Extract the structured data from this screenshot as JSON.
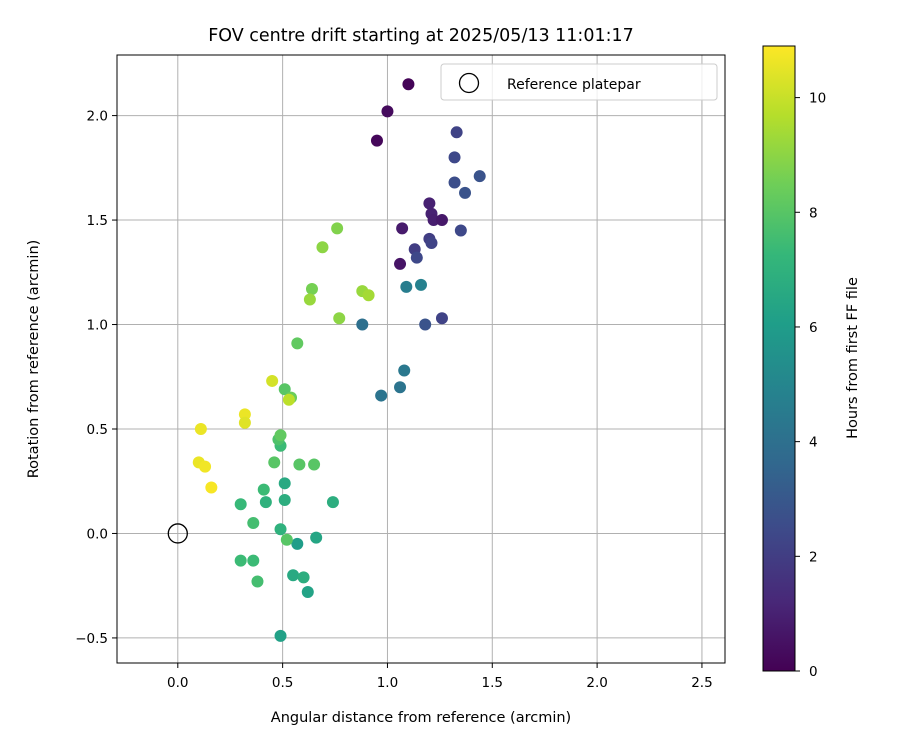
{
  "chart_data": {
    "type": "scatter",
    "title": "FOV centre drift starting at 2025/05/13 11:01:17",
    "xlabel": "Angular distance from reference (arcmin)",
    "ylabel": "Rotation from reference (arcmin)",
    "xlim": [
      -0.29,
      2.61
    ],
    "ylim": [
      -0.62,
      2.29
    ],
    "xticks": [
      0.0,
      0.5,
      1.0,
      1.5,
      2.0,
      2.5
    ],
    "xtick_labels": [
      "0.0",
      "0.5",
      "1.0",
      "1.5",
      "2.0",
      "2.5"
    ],
    "yticks": [
      -0.5,
      0.0,
      0.5,
      1.0,
      1.5,
      2.0
    ],
    "ytick_labels": [
      "−0.5",
      "0.0",
      "0.5",
      "1.0",
      "1.5",
      "2.0"
    ],
    "grid": true,
    "legend": {
      "placement": "top-right",
      "entries": [
        "Reference platepar"
      ]
    },
    "reference_point": {
      "name": "Reference platepar",
      "x": 0.0,
      "y": 0.0,
      "marker": "open-circle"
    },
    "colorbar": {
      "label": "Hours from first FF file",
      "colormap": "viridis",
      "range": [
        0,
        10.9
      ],
      "ticks": [
        0,
        2,
        4,
        6,
        8,
        10
      ],
      "tick_labels": [
        "0",
        "2",
        "4",
        "6",
        "8",
        "10"
      ],
      "colors": [
        "#440154",
        "#482878",
        "#3e4989",
        "#31688e",
        "#26828e",
        "#1f9e89",
        "#35b779",
        "#6ece58",
        "#b5de2b",
        "#fde725"
      ]
    },
    "series": [
      {
        "marker": "filled-circle",
        "points": [
          {
            "x": 1.1,
            "y": 2.15,
            "c": 0.1
          },
          {
            "x": 1.0,
            "y": 2.02,
            "c": 0.3
          },
          {
            "x": 0.95,
            "y": 1.88,
            "c": 0.2
          },
          {
            "x": 1.07,
            "y": 1.46,
            "c": 0.8
          },
          {
            "x": 1.06,
            "y": 1.29,
            "c": 0.6
          },
          {
            "x": 1.2,
            "y": 1.58,
            "c": 1.0
          },
          {
            "x": 1.21,
            "y": 1.53,
            "c": 1.0
          },
          {
            "x": 1.22,
            "y": 1.5,
            "c": 0.9
          },
          {
            "x": 1.26,
            "y": 1.5,
            "c": 0.7
          },
          {
            "x": 1.33,
            "y": 1.92,
            "c": 2.2
          },
          {
            "x": 1.32,
            "y": 1.8,
            "c": 2.4
          },
          {
            "x": 1.32,
            "y": 1.68,
            "c": 2.6
          },
          {
            "x": 1.37,
            "y": 1.63,
            "c": 2.8
          },
          {
            "x": 1.44,
            "y": 1.71,
            "c": 2.8
          },
          {
            "x": 1.35,
            "y": 1.45,
            "c": 2.4
          },
          {
            "x": 1.13,
            "y": 1.36,
            "c": 2.0
          },
          {
            "x": 1.2,
            "y": 1.41,
            "c": 2.0
          },
          {
            "x": 1.21,
            "y": 1.39,
            "c": 2.2
          },
          {
            "x": 1.14,
            "y": 1.32,
            "c": 2.4
          },
          {
            "x": 1.26,
            "y": 1.03,
            "c": 2.2
          },
          {
            "x": 1.18,
            "y": 1.0,
            "c": 2.8
          },
          {
            "x": 0.88,
            "y": 1.0,
            "c": 4.0
          },
          {
            "x": 1.09,
            "y": 1.18,
            "c": 4.6
          },
          {
            "x": 1.16,
            "y": 1.19,
            "c": 4.8
          },
          {
            "x": 1.08,
            "y": 0.78,
            "c": 4.4
          },
          {
            "x": 1.06,
            "y": 0.7,
            "c": 4.2
          },
          {
            "x": 0.97,
            "y": 0.66,
            "c": 4.2
          },
          {
            "x": 0.49,
            "y": -0.49,
            "c": 6.2
          },
          {
            "x": 0.62,
            "y": -0.28,
            "c": 6.3
          },
          {
            "x": 0.57,
            "y": -0.05,
            "c": 6.0
          },
          {
            "x": 0.66,
            "y": -0.02,
            "c": 6.4
          },
          {
            "x": 0.55,
            "y": -0.2,
            "c": 6.6
          },
          {
            "x": 0.6,
            "y": -0.21,
            "c": 6.8
          },
          {
            "x": 0.51,
            "y": 0.24,
            "c": 6.6
          },
          {
            "x": 0.51,
            "y": 0.16,
            "c": 6.8
          },
          {
            "x": 0.74,
            "y": 0.15,
            "c": 6.8
          },
          {
            "x": 0.49,
            "y": 0.02,
            "c": 7.0
          },
          {
            "x": 0.42,
            "y": 0.15,
            "c": 7.0
          },
          {
            "x": 0.41,
            "y": 0.21,
            "c": 7.4
          },
          {
            "x": 0.3,
            "y": 0.14,
            "c": 7.3
          },
          {
            "x": 0.3,
            "y": -0.13,
            "c": 7.4
          },
          {
            "x": 0.36,
            "y": -0.13,
            "c": 7.4
          },
          {
            "x": 0.38,
            "y": -0.23,
            "c": 7.6
          },
          {
            "x": 0.36,
            "y": 0.05,
            "c": 7.6
          },
          {
            "x": 0.52,
            "y": -0.03,
            "c": 8.0
          },
          {
            "x": 0.49,
            "y": 0.42,
            "c": 7.4
          },
          {
            "x": 0.48,
            "y": 0.45,
            "c": 7.8
          },
          {
            "x": 0.46,
            "y": 0.34,
            "c": 8.0
          },
          {
            "x": 0.58,
            "y": 0.33,
            "c": 8.0
          },
          {
            "x": 0.65,
            "y": 0.33,
            "c": 8.0
          },
          {
            "x": 0.49,
            "y": 0.47,
            "c": 8.2
          },
          {
            "x": 0.51,
            "y": 0.69,
            "c": 8.0
          },
          {
            "x": 0.54,
            "y": 0.65,
            "c": 8.4
          },
          {
            "x": 0.57,
            "y": 0.91,
            "c": 8.2
          },
          {
            "x": 0.64,
            "y": 1.17,
            "c": 8.6
          },
          {
            "x": 0.63,
            "y": 1.12,
            "c": 9.2
          },
          {
            "x": 0.69,
            "y": 1.37,
            "c": 9.0
          },
          {
            "x": 0.76,
            "y": 1.46,
            "c": 8.8
          },
          {
            "x": 0.77,
            "y": 1.03,
            "c": 9.0
          },
          {
            "x": 0.88,
            "y": 1.16,
            "c": 9.2
          },
          {
            "x": 0.91,
            "y": 1.14,
            "c": 9.4
          },
          {
            "x": 0.53,
            "y": 0.64,
            "c": 9.8
          },
          {
            "x": 0.45,
            "y": 0.73,
            "c": 10.2
          },
          {
            "x": 0.32,
            "y": 0.57,
            "c": 10.6
          },
          {
            "x": 0.32,
            "y": 0.53,
            "c": 10.4
          },
          {
            "x": 0.11,
            "y": 0.5,
            "c": 10.6
          },
          {
            "x": 0.1,
            "y": 0.34,
            "c": 10.6
          },
          {
            "x": 0.13,
            "y": 0.32,
            "c": 10.7
          },
          {
            "x": 0.16,
            "y": 0.22,
            "c": 10.8
          }
        ]
      }
    ]
  }
}
